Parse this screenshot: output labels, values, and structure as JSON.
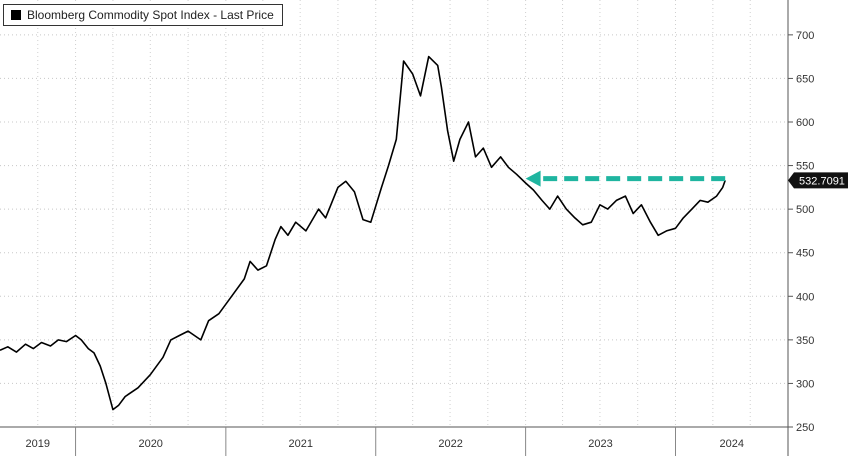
{
  "legend": {
    "label": "Bloomberg Commodity Spot Index - Last Price",
    "swatch_color": "#000000"
  },
  "chart_data": {
    "type": "line",
    "title": "",
    "xlabel": "",
    "ylabel": "",
    "ylim": [
      250,
      740
    ],
    "xlim": [
      "2019-07-01",
      "2024-10-01"
    ],
    "grid": true,
    "legend_position": "top-left",
    "y_ticks": [
      250,
      300,
      350,
      400,
      450,
      500,
      550,
      600,
      650,
      700
    ],
    "x_tick_labels": [
      "2019",
      "2020",
      "2021",
      "2022",
      "2023",
      "2024"
    ],
    "last_value_label": "532.7091",
    "annotation": {
      "type": "dashed-arrow",
      "color": "#1fb5a0",
      "from_date": "2024-05-01",
      "to_date": "2023-01-01",
      "value": 535
    },
    "series": [
      {
        "color": "#000000",
        "dates": [
          "2019-07-01",
          "2019-07-20",
          "2019-08-10",
          "2019-09-01",
          "2019-09-20",
          "2019-10-10",
          "2019-11-01",
          "2019-11-20",
          "2019-12-10",
          "2020-01-01",
          "2020-01-15",
          "2020-02-01",
          "2020-02-15",
          "2020-03-01",
          "2020-03-15",
          "2020-04-01",
          "2020-04-15",
          "2020-05-01",
          "2020-06-01",
          "2020-07-01",
          "2020-08-01",
          "2020-08-20",
          "2020-09-10",
          "2020-10-01",
          "2020-11-01",
          "2020-11-20",
          "2020-12-15",
          "2021-01-15",
          "2021-02-15",
          "2021-03-01",
          "2021-03-20",
          "2021-04-10",
          "2021-05-01",
          "2021-05-15",
          "2021-06-01",
          "2021-06-20",
          "2021-07-15",
          "2021-08-15",
          "2021-09-01",
          "2021-10-01",
          "2021-10-20",
          "2021-11-10",
          "2021-12-01",
          "2021-12-20",
          "2022-01-15",
          "2022-02-01",
          "2022-02-20",
          "2022-03-05",
          "2022-03-10",
          "2022-04-01",
          "2022-04-20",
          "2022-05-10",
          "2022-06-01",
          "2022-06-10",
          "2022-06-25",
          "2022-07-10",
          "2022-07-25",
          "2022-08-15",
          "2022-09-01",
          "2022-09-20",
          "2022-10-10",
          "2022-11-01",
          "2022-11-20",
          "2022-12-10",
          "2023-01-01",
          "2023-01-20",
          "2023-02-10",
          "2023-03-01",
          "2023-03-20",
          "2023-04-10",
          "2023-05-01",
          "2023-05-20",
          "2023-06-10",
          "2023-07-01",
          "2023-07-20",
          "2023-08-10",
          "2023-09-01",
          "2023-09-20",
          "2023-10-10",
          "2023-11-01",
          "2023-11-20",
          "2023-12-10",
          "2024-01-01",
          "2024-01-20",
          "2024-02-10",
          "2024-03-01",
          "2024-03-20",
          "2024-04-10",
          "2024-04-25",
          "2024-05-01"
        ],
        "values": [
          338,
          342,
          336,
          345,
          340,
          347,
          343,
          350,
          348,
          355,
          350,
          340,
          335,
          320,
          300,
          270,
          275,
          285,
          295,
          310,
          330,
          350,
          355,
          360,
          350,
          372,
          380,
          400,
          420,
          440,
          430,
          435,
          465,
          480,
          470,
          485,
          475,
          500,
          490,
          525,
          532,
          520,
          488,
          485,
          525,
          550,
          580,
          645,
          670,
          655,
          630,
          675,
          665,
          640,
          590,
          555,
          580,
          600,
          560,
          570,
          548,
          560,
          548,
          540,
          530,
          522,
          510,
          500,
          515,
          500,
          490,
          482,
          485,
          505,
          500,
          510,
          515,
          495,
          505,
          485,
          470,
          475,
          478,
          490,
          500,
          510,
          508,
          515,
          525,
          533
        ]
      }
    ]
  }
}
